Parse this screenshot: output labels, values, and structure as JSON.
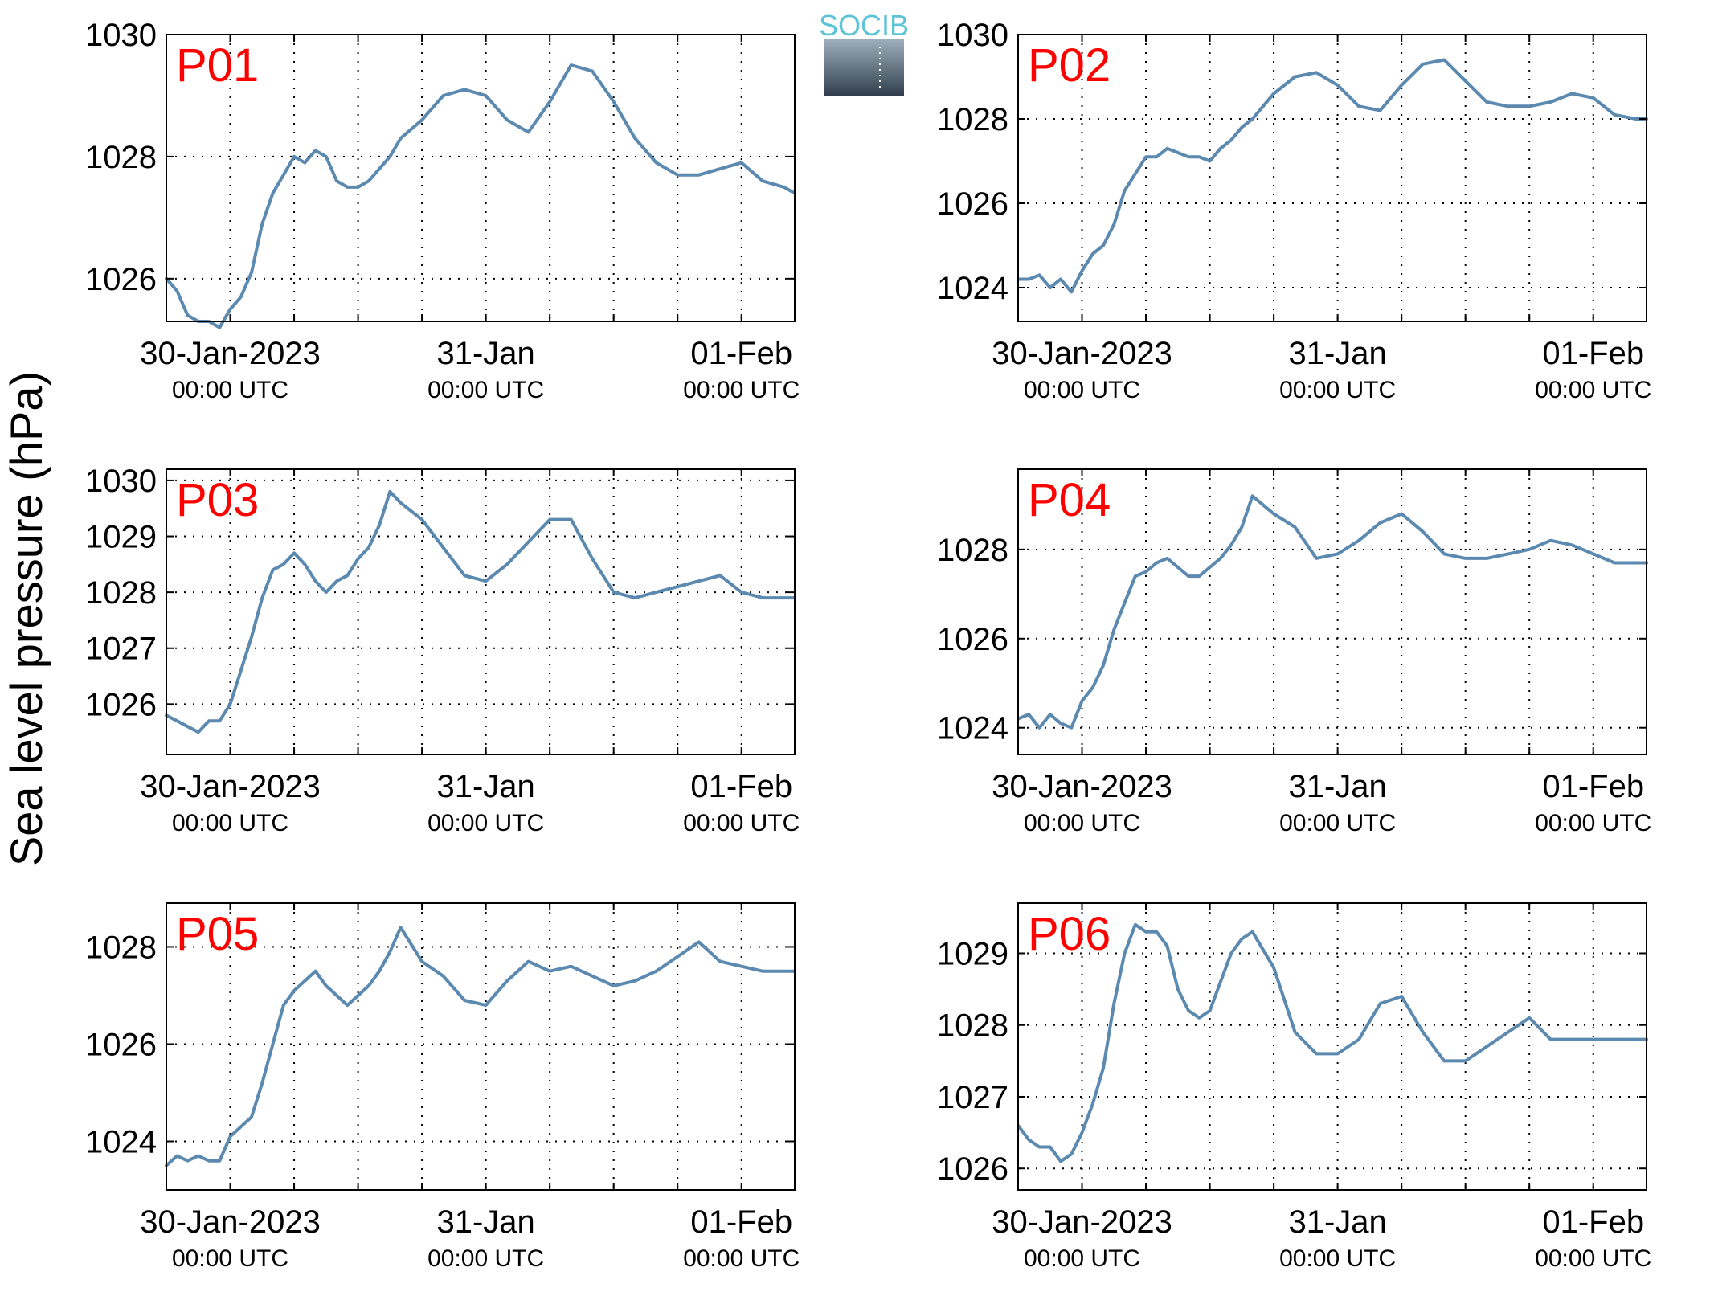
{
  "figure": {
    "ylabel": "Sea level pressure (hPa)",
    "logo": {
      "text": "SOCIB"
    },
    "colors": {
      "line": "#5b89b0",
      "panel_label": "#ff0000",
      "axes": "#000000",
      "grid": "#000000",
      "logo_top": "#5cc4d6",
      "logo_bottom": "#2f3e4a"
    }
  },
  "chart_data": [
    {
      "type": "line",
      "label": "P01",
      "x_unit": "hours since 30-Jan-2023 00:00 UTC",
      "ylim": [
        1025.3,
        1030
      ],
      "yticks": [
        1026,
        1028,
        1030
      ],
      "grid": true,
      "xticks": [
        {
          "main": "30-Jan-2023",
          "sub": "00:00 UTC"
        },
        {
          "main": "31-Jan",
          "sub": "00:00 UTC"
        },
        {
          "main": "01-Feb",
          "sub": "00:00 UTC"
        }
      ],
      "series": [
        {
          "x": [
            -6,
            -5,
            -4,
            -3,
            -2,
            -1,
            0,
            1,
            2,
            3,
            4,
            5,
            6,
            7,
            8,
            9,
            10,
            11,
            12,
            13,
            14,
            15,
            16,
            18,
            20,
            22,
            24,
            26,
            28,
            30,
            32,
            34,
            36,
            38,
            40,
            42,
            44,
            46,
            48,
            50,
            52,
            53
          ],
          "y": [
            1026.0,
            1025.8,
            1025.4,
            1025.3,
            1025.3,
            1025.2,
            1025.5,
            1025.7,
            1026.1,
            1026.9,
            1027.4,
            1027.7,
            1028.0,
            1027.9,
            1028.1,
            1028.0,
            1027.6,
            1027.5,
            1027.5,
            1027.6,
            1027.8,
            1028.0,
            1028.3,
            1028.6,
            1029.0,
            1029.1,
            1029.0,
            1028.6,
            1028.4,
            1028.9,
            1029.5,
            1029.4,
            1028.9,
            1028.3,
            1027.9,
            1027.7,
            1027.7,
            1027.8,
            1027.9,
            1027.6,
            1027.5,
            1027.4
          ]
        }
      ]
    },
    {
      "type": "line",
      "label": "P02",
      "x_unit": "hours since 30-Jan-2023 00:00 UTC",
      "ylim": [
        1023.2,
        1030
      ],
      "yticks": [
        1024,
        1026,
        1028,
        1030
      ],
      "grid": true,
      "xticks": [
        {
          "main": "30-Jan-2023",
          "sub": "00:00 UTC"
        },
        {
          "main": "31-Jan",
          "sub": "00:00 UTC"
        },
        {
          "main": "01-Feb",
          "sub": "00:00 UTC"
        }
      ],
      "series": [
        {
          "x": [
            -6,
            -5,
            -4,
            -3,
            -2,
            -1,
            0,
            1,
            2,
            3,
            4,
            5,
            6,
            7,
            8,
            9,
            10,
            11,
            12,
            13,
            14,
            15,
            16,
            18,
            20,
            22,
            24,
            26,
            28,
            30,
            32,
            34,
            36,
            38,
            40,
            42,
            44,
            46,
            48,
            50,
            52,
            53
          ],
          "y": [
            1024.2,
            1024.2,
            1024.3,
            1024.0,
            1024.2,
            1023.9,
            1024.4,
            1024.8,
            1025.0,
            1025.5,
            1026.3,
            1026.7,
            1027.1,
            1027.1,
            1027.3,
            1027.2,
            1027.1,
            1027.1,
            1027.0,
            1027.3,
            1027.5,
            1027.8,
            1028.0,
            1028.6,
            1029.0,
            1029.1,
            1028.8,
            1028.3,
            1028.2,
            1028.8,
            1029.3,
            1029.4,
            1028.9,
            1028.4,
            1028.3,
            1028.3,
            1028.4,
            1028.6,
            1028.5,
            1028.1,
            1028.0,
            1028.0
          ]
        }
      ]
    },
    {
      "type": "line",
      "label": "P03",
      "x_unit": "hours since 30-Jan-2023 00:00 UTC",
      "ylim": [
        1025.1,
        1030.2
      ],
      "yticks": [
        1026,
        1027,
        1028,
        1029,
        1030
      ],
      "grid": true,
      "xticks": [
        {
          "main": "30-Jan-2023",
          "sub": "00:00 UTC"
        },
        {
          "main": "31-Jan",
          "sub": "00:00 UTC"
        },
        {
          "main": "01-Feb",
          "sub": "00:00 UTC"
        }
      ],
      "series": [
        {
          "x": [
            -6,
            -5,
            -4,
            -3,
            -2,
            -1,
            0,
            1,
            2,
            3,
            4,
            5,
            6,
            7,
            8,
            9,
            10,
            11,
            12,
            13,
            14,
            15,
            16,
            18,
            20,
            22,
            24,
            26,
            28,
            30,
            32,
            34,
            36,
            38,
            40,
            42,
            44,
            46,
            48,
            50,
            52,
            53
          ],
          "y": [
            1025.8,
            1025.7,
            1025.6,
            1025.5,
            1025.7,
            1025.7,
            1026.0,
            1026.6,
            1027.2,
            1027.9,
            1028.4,
            1028.5,
            1028.7,
            1028.5,
            1028.2,
            1028.0,
            1028.2,
            1028.3,
            1028.6,
            1028.8,
            1029.2,
            1029.8,
            1029.6,
            1029.3,
            1028.8,
            1028.3,
            1028.2,
            1028.5,
            1028.9,
            1029.3,
            1029.3,
            1028.6,
            1028.0,
            1027.9,
            1028.0,
            1028.1,
            1028.2,
            1028.3,
            1028.0,
            1027.9,
            1027.9,
            1027.9
          ]
        }
      ]
    },
    {
      "type": "line",
      "label": "P04",
      "x_unit": "hours since 30-Jan-2023 00:00 UTC",
      "ylim": [
        1023.4,
        1029.8
      ],
      "yticks": [
        1024,
        1026,
        1028
      ],
      "grid": true,
      "xticks": [
        {
          "main": "30-Jan-2023",
          "sub": "00:00 UTC"
        },
        {
          "main": "31-Jan",
          "sub": "00:00 UTC"
        },
        {
          "main": "01-Feb",
          "sub": "00:00 UTC"
        }
      ],
      "series": [
        {
          "x": [
            -6,
            -5,
            -4,
            -3,
            -2,
            -1,
            0,
            1,
            2,
            3,
            4,
            5,
            6,
            7,
            8,
            9,
            10,
            11,
            12,
            13,
            14,
            15,
            16,
            18,
            20,
            22,
            24,
            26,
            28,
            30,
            32,
            34,
            36,
            38,
            40,
            42,
            44,
            46,
            48,
            50,
            52,
            53
          ],
          "y": [
            1024.2,
            1024.3,
            1024.0,
            1024.3,
            1024.1,
            1024.0,
            1024.6,
            1024.9,
            1025.4,
            1026.2,
            1026.8,
            1027.4,
            1027.5,
            1027.7,
            1027.8,
            1027.6,
            1027.4,
            1027.4,
            1027.6,
            1027.8,
            1028.1,
            1028.5,
            1029.2,
            1028.8,
            1028.5,
            1027.8,
            1027.9,
            1028.2,
            1028.6,
            1028.8,
            1028.4,
            1027.9,
            1027.8,
            1027.8,
            1027.9,
            1028.0,
            1028.2,
            1028.1,
            1027.9,
            1027.7,
            1027.7,
            1027.7
          ]
        }
      ]
    },
    {
      "type": "line",
      "label": "P05",
      "x_unit": "hours since 30-Jan-2023 00:00 UTC",
      "ylim": [
        1023.0,
        1028.9
      ],
      "yticks": [
        1024,
        1026,
        1028
      ],
      "grid": true,
      "xticks": [
        {
          "main": "30-Jan-2023",
          "sub": "00:00 UTC"
        },
        {
          "main": "31-Jan",
          "sub": "00:00 UTC"
        },
        {
          "main": "01-Feb",
          "sub": "00:00 UTC"
        }
      ],
      "series": [
        {
          "x": [
            -6,
            -5,
            -4,
            -3,
            -2,
            -1,
            0,
            1,
            2,
            3,
            4,
            5,
            6,
            7,
            8,
            9,
            10,
            11,
            12,
            13,
            14,
            15,
            16,
            18,
            20,
            22,
            24,
            26,
            28,
            30,
            32,
            34,
            36,
            38,
            40,
            42,
            44,
            46,
            48,
            50,
            52,
            53
          ],
          "y": [
            1023.5,
            1023.7,
            1023.6,
            1023.7,
            1023.6,
            1023.6,
            1024.1,
            1024.3,
            1024.5,
            1025.2,
            1026.0,
            1026.8,
            1027.1,
            1027.3,
            1027.5,
            1027.2,
            1027.0,
            1026.8,
            1027.0,
            1027.2,
            1027.5,
            1027.9,
            1028.4,
            1027.7,
            1027.4,
            1026.9,
            1026.8,
            1027.3,
            1027.7,
            1027.5,
            1027.6,
            1027.4,
            1027.2,
            1027.3,
            1027.5,
            1027.8,
            1028.1,
            1027.7,
            1027.6,
            1027.5,
            1027.5,
            1027.5
          ]
        }
      ]
    },
    {
      "type": "line",
      "label": "P06",
      "x_unit": "hours since 30-Jan-2023 00:00 UTC",
      "ylim": [
        1025.7,
        1029.7
      ],
      "yticks": [
        1026,
        1027,
        1028,
        1029
      ],
      "grid": true,
      "xticks": [
        {
          "main": "30-Jan-2023",
          "sub": "00:00 UTC"
        },
        {
          "main": "31-Jan",
          "sub": "00:00 UTC"
        },
        {
          "main": "01-Feb",
          "sub": "00:00 UTC"
        }
      ],
      "series": [
        {
          "x": [
            -6,
            -5,
            -4,
            -3,
            -2,
            -1,
            0,
            1,
            2,
            3,
            4,
            5,
            6,
            7,
            8,
            9,
            10,
            11,
            12,
            13,
            14,
            15,
            16,
            18,
            20,
            22,
            24,
            26,
            28,
            30,
            32,
            34,
            36,
            38,
            40,
            42,
            44,
            46,
            48,
            50,
            52,
            53
          ],
          "y": [
            1026.6,
            1026.4,
            1026.3,
            1026.3,
            1026.1,
            1026.2,
            1026.5,
            1026.9,
            1027.4,
            1028.3,
            1029.0,
            1029.4,
            1029.3,
            1029.3,
            1029.1,
            1028.5,
            1028.2,
            1028.1,
            1028.2,
            1028.6,
            1029.0,
            1029.2,
            1029.3,
            1028.8,
            1027.9,
            1027.6,
            1027.6,
            1027.8,
            1028.3,
            1028.4,
            1027.9,
            1027.5,
            1027.5,
            1027.7,
            1027.9,
            1028.1,
            1027.8,
            1027.8,
            1027.8,
            1027.8,
            1027.8,
            1027.8
          ]
        }
      ]
    }
  ]
}
